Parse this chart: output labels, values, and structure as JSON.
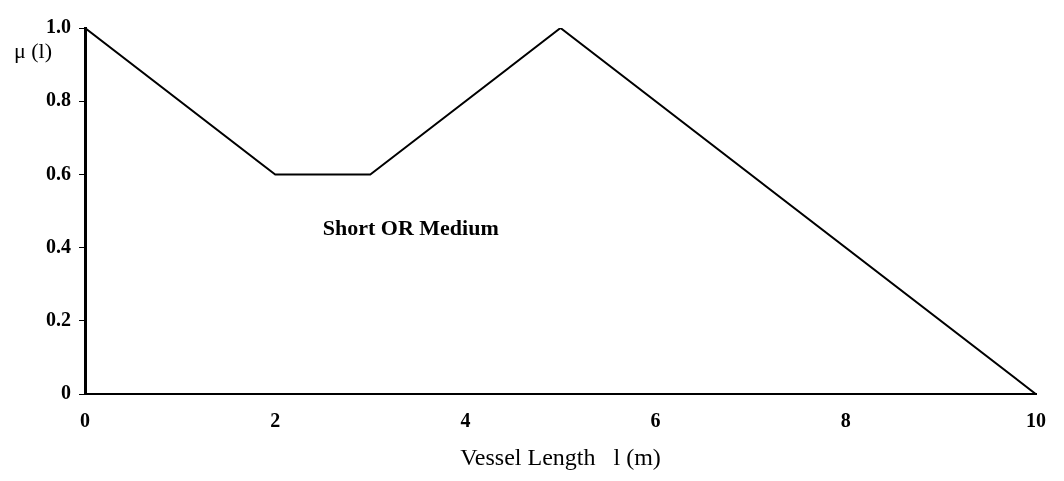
{
  "chart_data": {
    "type": "line",
    "xlabel": "Vessel Length   l (m)",
    "ylabel": "μ (l)",
    "x": [
      0,
      2,
      3,
      5,
      10
    ],
    "series": [
      {
        "name": "Short OR Medium",
        "color": "#000000",
        "values": [
          1,
          0.6,
          0.6,
          1,
          0
        ]
      }
    ],
    "xlim": [
      0,
      10
    ],
    "xticks": [
      0,
      2,
      4,
      6,
      8,
      10
    ],
    "ylim": [
      0,
      1
    ],
    "yticks": [
      0,
      0.2,
      0.4,
      0.6,
      0.8,
      {
        "value": 1,
        "label": "1.0"
      }
    ],
    "grid": false,
    "legend": false,
    "marker": "none",
    "line_style": "solid"
  }
}
